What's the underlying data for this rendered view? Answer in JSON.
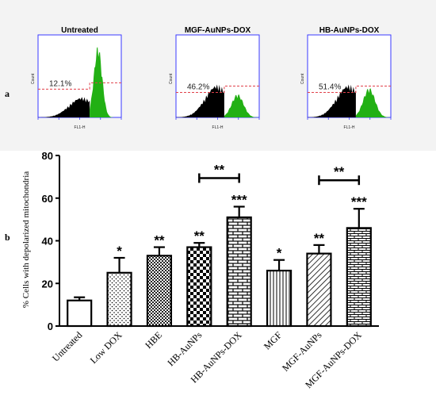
{
  "panel_a": {
    "label": "a",
    "histograms": [
      {
        "title": "Untreated",
        "percent_label": "12.1%",
        "y_axis_label": "Count",
        "x_axis_label": "FL1-H",
        "depolarized_percent": 12.1
      },
      {
        "title": "MGF-AuNPs-DOX",
        "percent_label": "46.2%",
        "y_axis_label": "Count",
        "x_axis_label": "FL1-H",
        "depolarized_percent": 46.2
      },
      {
        "title": "HB-AuNPs-DOX",
        "percent_label": "51.4%",
        "y_axis_label": "Count",
        "x_axis_label": "FL1-H",
        "depolarized_percent": 51.4
      }
    ],
    "colors": {
      "background": "#f3f3f3",
      "frame": "#3a3aff",
      "healthy": "#22b014",
      "depolarized": "#000000",
      "gate": "#e0404a"
    }
  },
  "chart_data": {
    "type": "bar",
    "panel_label": "b",
    "title": "",
    "xlabel": "",
    "ylabel": "% Cells with depolarized mitochondria",
    "ylim": [
      0,
      80
    ],
    "yticks": [
      "0",
      "20",
      "40",
      "60",
      "80"
    ],
    "grid": false,
    "categories": [
      "Untreated",
      "Low DOX",
      "HBE",
      "HB-AuNPs",
      "HB-AuNPs-DOX",
      "MGF",
      "MGF-AuNPs",
      "MGF-AuNPs-DOX"
    ],
    "values": [
      12,
      25,
      33,
      37,
      51,
      26,
      34,
      46
    ],
    "errors": [
      1.5,
      7,
      4,
      2,
      5,
      5,
      4,
      9
    ],
    "significance": [
      "",
      "*",
      "**",
      "**",
      "***",
      "*",
      "**",
      "***"
    ],
    "patterns": [
      "none",
      "dots",
      "check",
      "checker",
      "hbrick",
      "vlines",
      "diag",
      "brick"
    ],
    "comparisons": [
      {
        "from": 3,
        "to": 4,
        "label": "**"
      },
      {
        "from": 6,
        "to": 7,
        "label": "**"
      }
    ]
  }
}
